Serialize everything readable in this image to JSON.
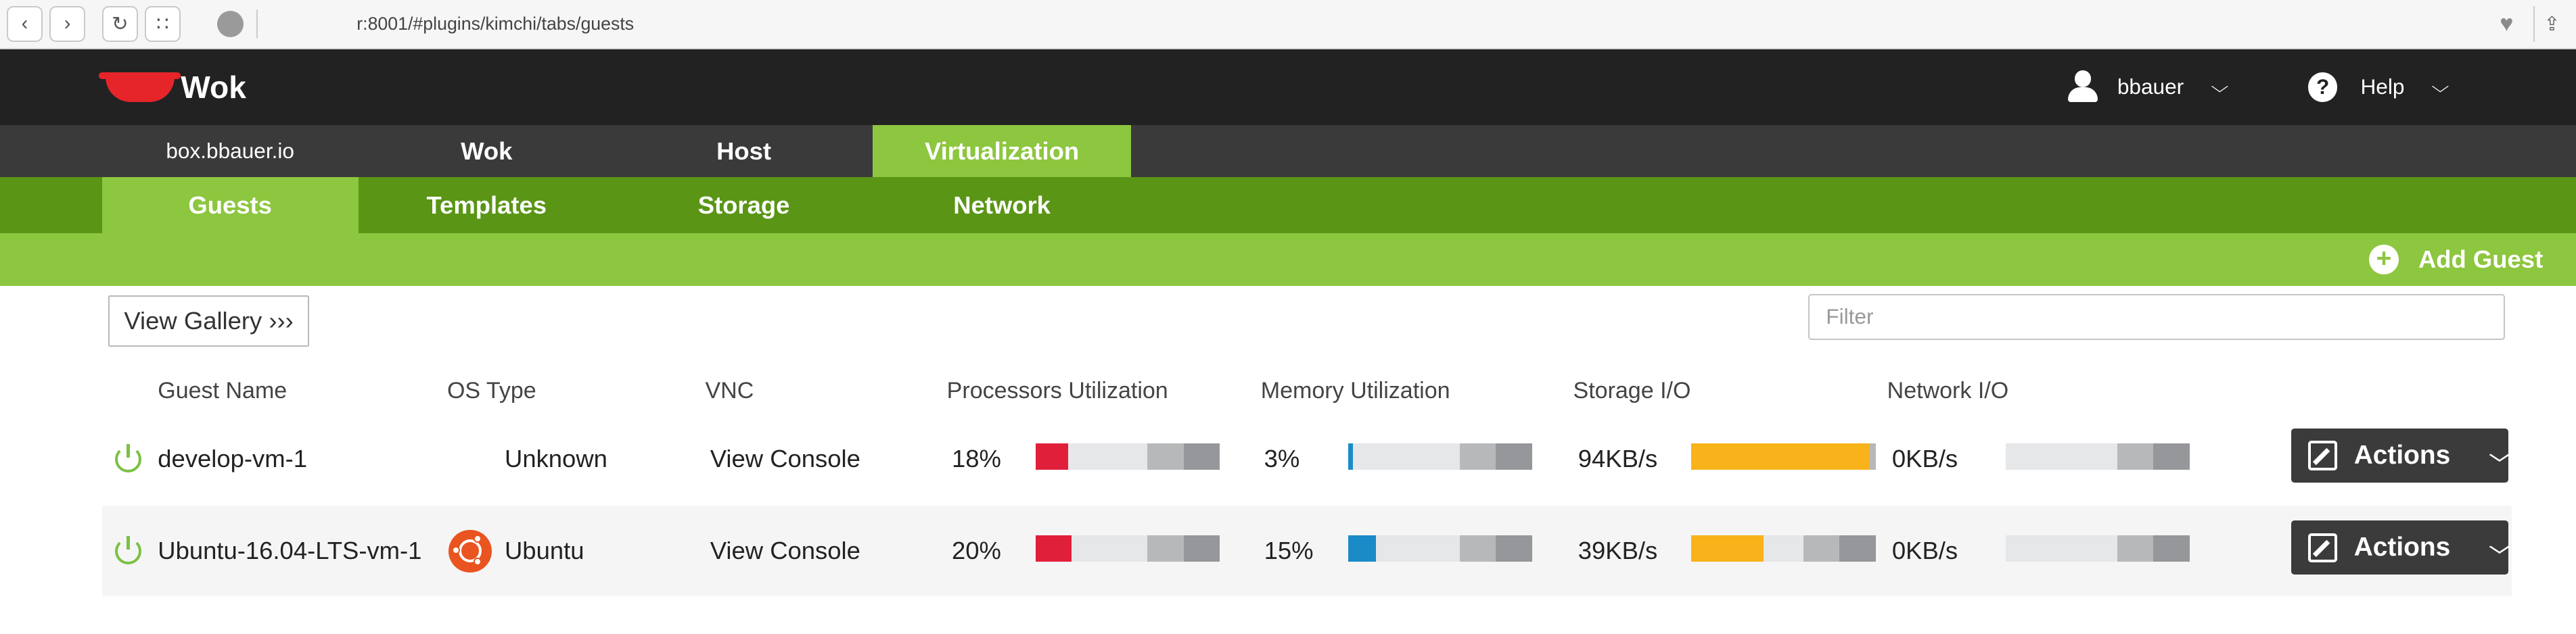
{
  "browser": {
    "url": "r:8001/#plugins/kimchi/tabs/guests"
  },
  "header": {
    "brand": "Wok",
    "user": "bbauer",
    "help": "Help"
  },
  "primary_nav": {
    "host_label": "box.bbauer.io",
    "items": [
      "Wok",
      "Host",
      "Virtualization"
    ],
    "active": "Virtualization"
  },
  "secondary_nav": {
    "items": [
      "Guests",
      "Templates",
      "Storage",
      "Network"
    ],
    "active": "Guests"
  },
  "toolbar": {
    "add_guest": "Add Guest",
    "view_gallery": "View Gallery ›››",
    "filter_placeholder": "Filter"
  },
  "table": {
    "columns": [
      "Guest Name",
      "OS Type",
      "VNC",
      "Processors Utilization",
      "Memory Utilization",
      "Storage I/O",
      "Network I/O"
    ],
    "rows": [
      {
        "name": "develop-vm-1",
        "os": "Unknown",
        "vnc": "View Console",
        "cpu": "18%",
        "cpu_fill": 0.18,
        "mem": "3%",
        "mem_fill": 0.03,
        "storage": "94KB/s",
        "storage_fill": 0.96,
        "network": "0KB/s",
        "network_fill": 0,
        "actions": "Actions"
      },
      {
        "name": "Ubuntu-16.04-LTS-vm-1",
        "os": "Ubuntu",
        "vnc": "View Console",
        "cpu": "20%",
        "cpu_fill": 0.2,
        "mem": "15%",
        "mem_fill": 0.15,
        "storage": "39KB/s",
        "storage_fill": 0.39,
        "network": "0KB/s",
        "network_fill": 0,
        "actions": "Actions"
      }
    ]
  },
  "colors": {
    "cpu": "#e0203a",
    "memory": "#1b8bc8",
    "storage": "#f8b21a",
    "network": "#e6e7e9",
    "accent_green": "#8dc63f",
    "dark_green": "#5a9516"
  }
}
